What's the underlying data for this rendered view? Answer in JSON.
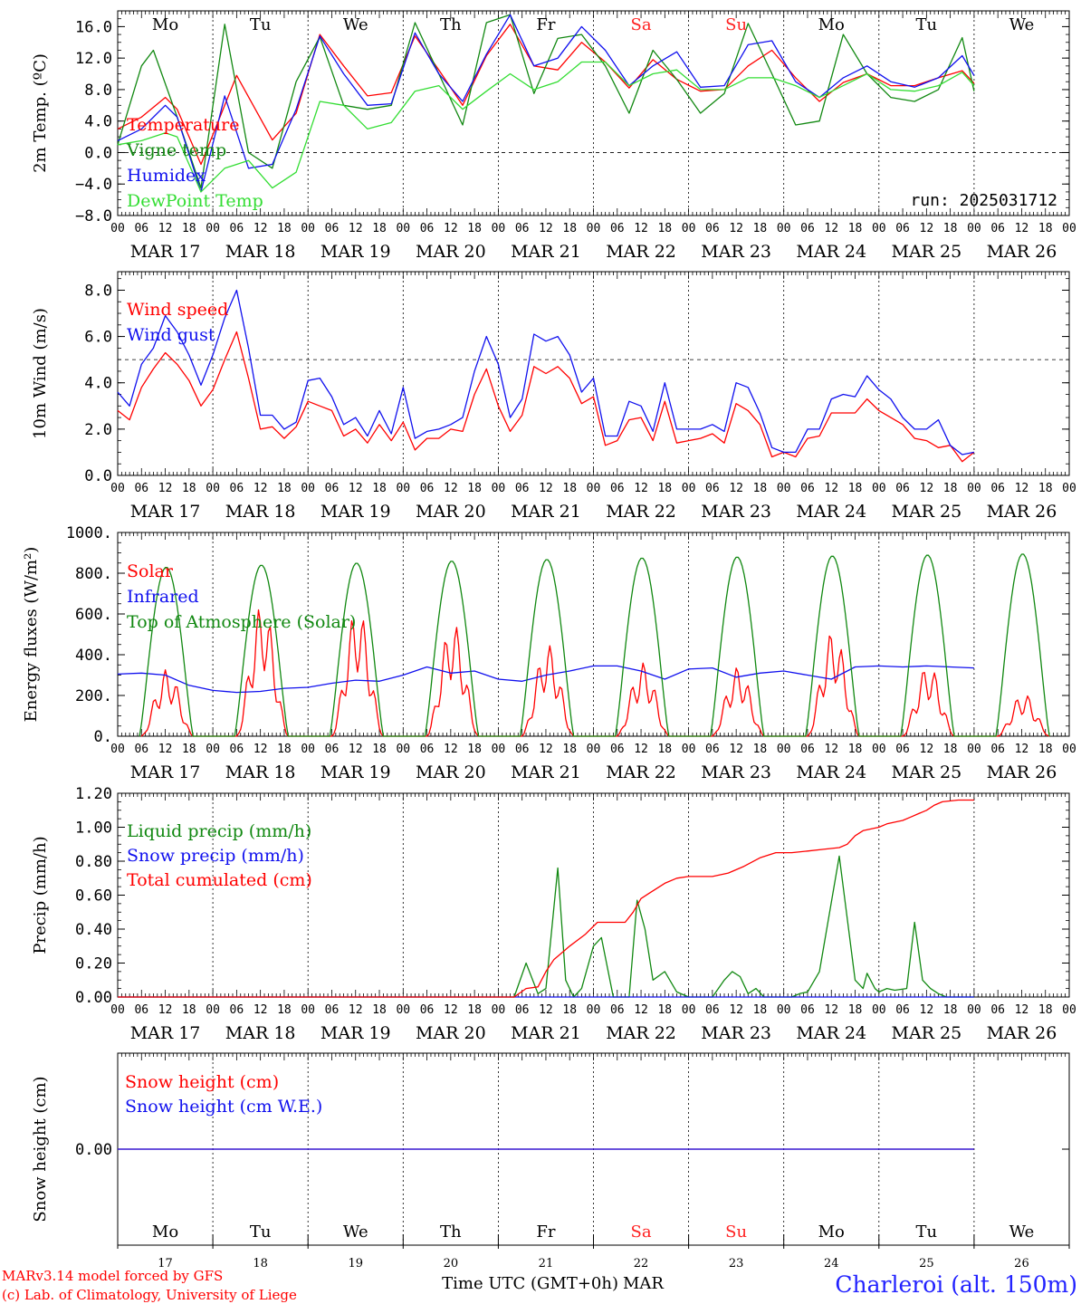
{
  "days": [
    "Mo",
    "Tu",
    "We",
    "Th",
    "Fr",
    "Sa",
    "Su",
    "Mo",
    "Tu",
    "We"
  ],
  "weekend_days": [
    "Sa",
    "Su"
  ],
  "dates": [
    "MAR 17",
    "MAR 18",
    "MAR 19",
    "MAR 20",
    "MAR 21",
    "MAR 22",
    "MAR 23",
    "MAR 24",
    "MAR 25",
    "MAR 26"
  ],
  "day_numbers": [
    "17",
    "18",
    "19",
    "20",
    "21",
    "22",
    "23",
    "24",
    "25",
    "26"
  ],
  "hour_ticks": [
    "00",
    "06",
    "12",
    "18"
  ],
  "final_hour_tick": "00",
  "footer": {
    "model": "MARv3.14 model forced by GFS",
    "copyright": "(c) Lab. of Climatology, University of Liege",
    "xlabel": "Time UTC (GMT+0h)",
    "month": "MAR",
    "station": "Charleroi (alt. 150m)"
  },
  "colors": {
    "red": "#ff0000",
    "green": "#118811",
    "blue": "#1010ee",
    "lightgreen": "#33dd33",
    "axis": "#000000",
    "weekend": "#ff2020"
  },
  "chart_data": [
    {
      "type": "line",
      "ylabel": "2m Temp. (ºC)",
      "run_label": "run: 2025031712",
      "ylim": [
        -8,
        18
      ],
      "yticks": [
        "16.0",
        "12.0",
        "8.0",
        "4.0",
        "0.0",
        "−4.0",
        "−8.0"
      ],
      "ytick_values": [
        16,
        12,
        8,
        4,
        0,
        -4,
        -8
      ],
      "ref_line": 0,
      "x_unit": "hours since MAR 17 00 UTC",
      "series": [
        {
          "name": "Temperature",
          "color": "#ff0000",
          "x": [
            0,
            6,
            12,
            15,
            21,
            30,
            39,
            45,
            51,
            57,
            63,
            69,
            75,
            81,
            87,
            93,
            99,
            105,
            111,
            117,
            123,
            129,
            135,
            141,
            147,
            153,
            159,
            165,
            171,
            177,
            183,
            189,
            195,
            201,
            207,
            213,
            216
          ],
          "y": [
            3,
            4.5,
            7,
            5.5,
            -1.5,
            9.8,
            1.6,
            5,
            15,
            11,
            7.2,
            7.6,
            14.8,
            10.5,
            6,
            12.3,
            16.3,
            11,
            10.5,
            14,
            11.5,
            8.2,
            11.8,
            9.3,
            7.8,
            8,
            11,
            13,
            9.5,
            6.5,
            8.9,
            10,
            8.5,
            8.5,
            9.5,
            10.4,
            8.8
          ]
        },
        {
          "name": "Vigne temp",
          "color": "#118811",
          "x": [
            0,
            6,
            9,
            15,
            21,
            27,
            33,
            39,
            45,
            51,
            57,
            63,
            69,
            75,
            81,
            87,
            93,
            99,
            105,
            111,
            117,
            123,
            129,
            135,
            141,
            147,
            153,
            159,
            165,
            171,
            177,
            183,
            189,
            195,
            201,
            207,
            213,
            216
          ],
          "y": [
            1,
            11,
            13,
            4.5,
            -4.5,
            16.3,
            0,
            -2,
            9,
            14.7,
            6,
            5.5,
            6,
            16.5,
            10,
            3.5,
            16.5,
            17.5,
            7.5,
            14.5,
            15,
            11,
            5,
            13,
            9.3,
            5,
            7.5,
            16.4,
            10,
            3.5,
            4,
            15,
            10,
            7,
            6.5,
            8,
            14.6,
            7.8
          ]
        },
        {
          "name": "Humidex",
          "color": "#1010ee",
          "x": [
            0,
            6,
            12,
            15,
            21,
            27,
            33,
            39,
            45,
            51,
            57,
            63,
            69,
            75,
            81,
            87,
            93,
            99,
            105,
            111,
            117,
            123,
            129,
            135,
            141,
            147,
            153,
            159,
            165,
            171,
            177,
            183,
            189,
            195,
            201,
            207,
            213,
            216
          ],
          "y": [
            1.5,
            3,
            6,
            4.5,
            -5,
            7.2,
            -2,
            -1.5,
            5.5,
            14.8,
            10,
            6,
            6.2,
            15.2,
            10,
            6.5,
            12.5,
            17.5,
            11,
            12,
            16,
            13,
            8.5,
            11,
            12.8,
            8.3,
            8.5,
            13.7,
            14.2,
            9,
            7,
            9.5,
            11,
            9,
            8.3,
            9.5,
            12.3,
            9.8
          ]
        },
        {
          "name": "DewPoint Temp",
          "color": "#33dd33",
          "x": [
            0,
            6,
            12,
            15,
            21,
            27,
            33,
            39,
            45,
            51,
            57,
            63,
            69,
            75,
            81,
            87,
            93,
            99,
            105,
            111,
            117,
            123,
            129,
            135,
            141,
            147,
            153,
            159,
            165,
            171,
            177,
            183,
            189,
            195,
            201,
            207,
            213,
            216
          ],
          "y": [
            1,
            1.5,
            2.5,
            2,
            -5,
            -2,
            -1,
            -4.5,
            -2.5,
            6.5,
            6,
            3,
            3.8,
            7.8,
            8.5,
            5.5,
            7.8,
            10,
            8,
            9,
            11.5,
            11.5,
            8.5,
            10,
            10.5,
            8,
            8,
            9.5,
            9.5,
            8.5,
            7,
            8.5,
            10,
            8,
            7.8,
            8.5,
            10.2,
            8.5
          ]
        }
      ]
    },
    {
      "type": "line",
      "ylabel": "10m Wind (m/s)",
      "ylim": [
        0,
        8.8
      ],
      "yticks": [
        "8.0",
        "6.0",
        "4.0",
        "2.0",
        "0.0"
      ],
      "ytick_values": [
        8,
        6,
        4,
        2,
        0
      ],
      "ref_line": 5,
      "x_unit": "hours since MAR 17 00 UTC",
      "series": [
        {
          "name": "Wind speed",
          "color": "#ff0000",
          "x": [
            0,
            3,
            6,
            9,
            12,
            15,
            18,
            21,
            24,
            27,
            30,
            33,
            36,
            39,
            42,
            45,
            48,
            51,
            54,
            57,
            60,
            63,
            66,
            69,
            72,
            75,
            78,
            81,
            84,
            87,
            90,
            93,
            96,
            99,
            102,
            105,
            108,
            111,
            114,
            117,
            120,
            123,
            126,
            129,
            132,
            135,
            138,
            141,
            144,
            147,
            150,
            153,
            156,
            159,
            162,
            165,
            168,
            171,
            174,
            177,
            180,
            183,
            186,
            189,
            192,
            195,
            198,
            201,
            204,
            207,
            210,
            213,
            216
          ],
          "y": [
            2.8,
            2.4,
            3.8,
            4.6,
            5.3,
            4.8,
            4.1,
            3,
            3.7,
            5,
            6.2,
            4.2,
            2,
            2.1,
            1.6,
            2.1,
            3.2,
            3,
            2.8,
            1.7,
            2,
            1.4,
            2.2,
            1.5,
            2.3,
            1.1,
            1.6,
            1.6,
            2,
            1.9,
            3.5,
            4.6,
            3,
            1.9,
            2.6,
            4.7,
            4.4,
            4.7,
            4.2,
            3.1,
            3.4,
            1.3,
            1.5,
            2.4,
            2.5,
            1.5,
            3.2,
            1.4,
            1.5,
            1.6,
            1.8,
            1.4,
            3.1,
            2.8,
            2.2,
            0.8,
            1,
            0.8,
            1.6,
            1.7,
            2.7,
            2.7,
            2.7,
            3.3,
            2.8,
            2.5,
            2.2,
            1.6,
            1.5,
            1.2,
            1.3,
            0.6,
            1
          ]
        },
        {
          "name": "Wind gust",
          "color": "#1010ee",
          "x": [
            0,
            3,
            6,
            9,
            12,
            15,
            18,
            21,
            24,
            27,
            30,
            33,
            36,
            39,
            42,
            45,
            48,
            51,
            54,
            57,
            60,
            63,
            66,
            69,
            72,
            75,
            78,
            81,
            84,
            87,
            90,
            93,
            96,
            99,
            102,
            105,
            108,
            111,
            114,
            117,
            120,
            123,
            126,
            129,
            132,
            135,
            138,
            141,
            144,
            147,
            150,
            153,
            156,
            159,
            162,
            165,
            168,
            171,
            174,
            177,
            180,
            183,
            186,
            189,
            192,
            195,
            198,
            201,
            204,
            207,
            210,
            213,
            216
          ],
          "y": [
            3.6,
            3,
            4.8,
            5.5,
            6.9,
            6.2,
            5.2,
            3.9,
            5.2,
            6.8,
            8,
            5.5,
            2.6,
            2.6,
            2,
            2.3,
            4.1,
            4.2,
            3.4,
            2.2,
            2.5,
            1.7,
            2.8,
            1.8,
            3.8,
            1.6,
            1.9,
            2,
            2.2,
            2.5,
            4.5,
            6,
            4.8,
            2.5,
            3.3,
            6.1,
            5.8,
            6,
            5.2,
            3.6,
            4.2,
            1.7,
            1.7,
            3.2,
            3,
            1.9,
            4,
            2,
            2,
            2,
            2.2,
            1.9,
            4,
            3.8,
            2.7,
            1.2,
            1,
            1,
            2,
            2,
            3.3,
            3.5,
            3.4,
            4.3,
            3.7,
            3.3,
            2.5,
            2,
            2,
            2.4,
            1.3,
            0.9,
            1
          ]
        }
      ]
    },
    {
      "type": "line",
      "ylabel": "Energy fluxes (W/m²)",
      "ylim": [
        0,
        1000
      ],
      "yticks": [
        "1000.",
        "800.",
        "600.",
        "400.",
        "200.",
        "0."
      ],
      "ytick_values": [
        1000,
        800,
        600,
        400,
        200,
        0
      ],
      "x_unit": "hours since MAR 17 00 UTC",
      "series": [
        {
          "name": "Solar",
          "color": "#ff0000",
          "peaks": [
            330,
            650,
            630,
            560,
            450,
            360,
            340,
            520,
            350,
            210
          ],
          "daylight_start": 6,
          "daylight_end": 19
        },
        {
          "name": "Infrared",
          "color": "#1010ee",
          "x": [
            0,
            6,
            12,
            18,
            24,
            30,
            36,
            42,
            48,
            54,
            60,
            66,
            72,
            78,
            84,
            90,
            96,
            102,
            108,
            114,
            120,
            126,
            132,
            138,
            144,
            150,
            156,
            162,
            168,
            174,
            180,
            186,
            192,
            198,
            204,
            210,
            216
          ],
          "y": [
            305,
            310,
            300,
            250,
            225,
            215,
            220,
            235,
            240,
            260,
            275,
            270,
            300,
            340,
            310,
            320,
            280,
            270,
            300,
            320,
            345,
            345,
            320,
            280,
            330,
            335,
            290,
            310,
            320,
            300,
            280,
            340,
            345,
            340,
            345,
            340,
            335
          ]
        },
        {
          "name": "Top of Atmosphere (Solar)",
          "color": "#118811",
          "peaks": [
            830,
            840,
            850,
            860,
            868,
            875,
            880,
            885,
            890,
            895
          ],
          "daylight_start": 5.5,
          "daylight_end": 19
        }
      ]
    },
    {
      "type": "line",
      "ylabel": "Precip (mm/h)",
      "ylim": [
        0,
        1.2
      ],
      "yticks": [
        "1.20",
        "1.00",
        "0.80",
        "0.60",
        "0.40",
        "0.20",
        "0.00"
      ],
      "ytick_values": [
        1.2,
        1,
        0.8,
        0.6,
        0.4,
        0.2,
        0
      ],
      "x_unit": "hours since MAR 17 00 UTC",
      "series": [
        {
          "name": "Liquid precip (mm/h)",
          "color": "#118811",
          "x": [
            0,
            100,
            103,
            106,
            108,
            111,
            113,
            115,
            117,
            120,
            122,
            125,
            129,
            131,
            133,
            135,
            138,
            141,
            144,
            150,
            153,
            155,
            157,
            159,
            161,
            163,
            166,
            168,
            170,
            172,
            174,
            177,
            182,
            186,
            188,
            189,
            191,
            192,
            194,
            196,
            199,
            201,
            203,
            205,
            207,
            209,
            211,
            213,
            215,
            216
          ],
          "y": [
            0,
            0,
            0.2,
            0.02,
            0.05,
            0.76,
            0.1,
            0,
            0.05,
            0.3,
            0.35,
            0,
            0,
            0.57,
            0.4,
            0.1,
            0.15,
            0.03,
            0,
            0,
            0.1,
            0.15,
            0.12,
            0.02,
            0.05,
            0,
            0,
            0,
            0,
            0.02,
            0.03,
            0.15,
            0.83,
            0.1,
            0.05,
            0.14,
            0.05,
            0.03,
            0.05,
            0.04,
            0.05,
            0.44,
            0.1,
            0.05,
            0.02,
            0,
            0,
            0,
            0,
            0
          ]
        },
        {
          "name": "Snow precip (mm/h)",
          "color": "#1010ee",
          "x": [
            0,
            216
          ],
          "y": [
            0,
            0
          ]
        },
        {
          "name": "Total cumulated (cm)",
          "color": "#ff0000",
          "x": [
            0,
            100,
            103,
            106,
            108,
            110,
            112,
            114,
            118,
            121,
            124,
            128,
            130,
            132,
            134,
            138,
            141,
            144,
            150,
            154,
            158,
            162,
            166,
            170,
            174,
            178,
            182,
            184,
            186,
            188,
            192,
            194,
            196,
            198,
            200,
            202,
            204,
            206,
            208,
            212,
            216
          ],
          "y": [
            0,
            0,
            0.05,
            0.06,
            0.15,
            0.22,
            0.26,
            0.3,
            0.37,
            0.44,
            0.44,
            0.44,
            0.5,
            0.58,
            0.61,
            0.67,
            0.7,
            0.71,
            0.71,
            0.73,
            0.77,
            0.82,
            0.85,
            0.85,
            0.86,
            0.87,
            0.88,
            0.9,
            0.95,
            0.98,
            1,
            1.02,
            1.03,
            1.04,
            1.06,
            1.08,
            1.1,
            1.13,
            1.15,
            1.16,
            1.16
          ]
        }
      ]
    },
    {
      "type": "line",
      "ylabel": "Snow height (cm)",
      "ylim": [
        -1,
        1
      ],
      "yticks": [
        "0.00"
      ],
      "ytick_values": [
        0
      ],
      "x_unit": "hours since MAR 17 00 UTC",
      "series": [
        {
          "name": "Snow height (cm)",
          "color": "#ff0000",
          "x": [
            0,
            216
          ],
          "y": [
            0,
            0
          ]
        },
        {
          "name": "Snow height (cm W.E.)",
          "color": "#1010ee",
          "x": [
            0,
            216
          ],
          "y": [
            0,
            0
          ]
        }
      ]
    }
  ]
}
